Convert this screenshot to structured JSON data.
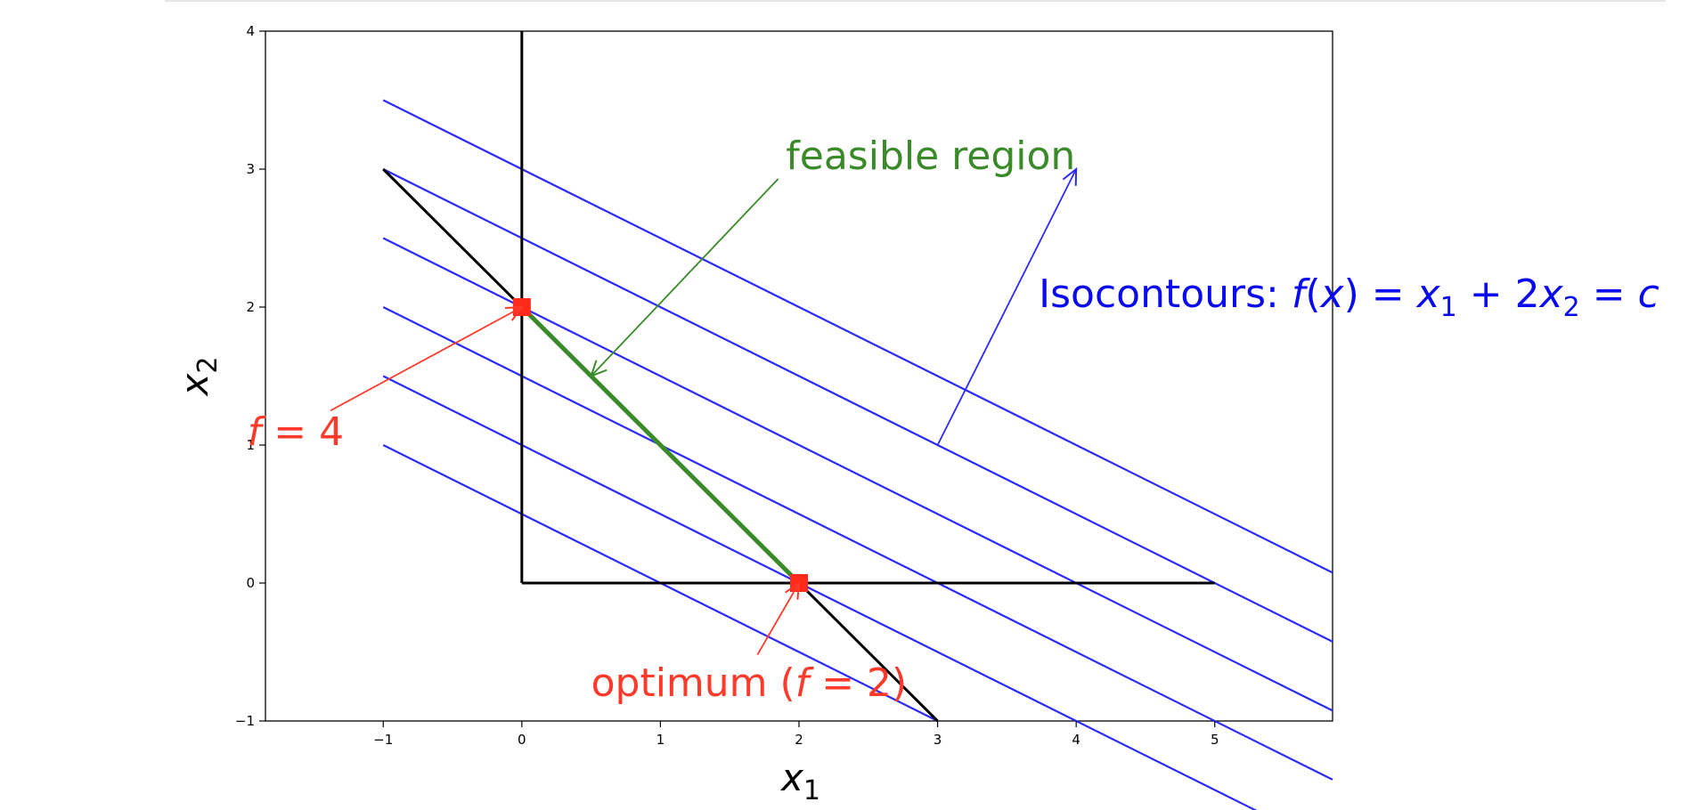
{
  "chart_data": {
    "type": "line",
    "title": "",
    "xlabel": "x",
    "xlabel_sub": "1",
    "ylabel": "x",
    "ylabel_sub": "2",
    "xlim": [
      -1.85,
      5.85
    ],
    "ylim": [
      -1,
      4
    ],
    "xticks": [
      -1,
      0,
      1,
      2,
      3,
      4,
      5
    ],
    "yticks": [
      -1,
      0,
      1,
      2,
      3,
      4
    ],
    "grid": false,
    "colors": {
      "constraint": "#000000",
      "isocontour": "#2a2aff",
      "feasible": "#3a8a2a",
      "highlight": "#ff2a1a",
      "isolabel": "#0a0aee"
    },
    "constraint_lines": [
      {
        "x": [
          0,
          0
        ],
        "y": [
          0,
          4
        ]
      },
      {
        "x": [
          0,
          5
        ],
        "y": [
          0,
          0
        ]
      },
      {
        "x": [
          -1,
          3
        ],
        "y": [
          3,
          -1
        ]
      }
    ],
    "feasible_segment": {
      "x": [
        0,
        2
      ],
      "y": [
        2,
        0
      ]
    },
    "isocontours": [
      {
        "c": 1,
        "x": [
          -1,
          3
        ],
        "y": [
          1,
          -1
        ]
      },
      {
        "c": 2,
        "x": [
          -1,
          5.85
        ],
        "y": [
          1.5,
          -1.925
        ]
      },
      {
        "c": 3,
        "x": [
          -1,
          5.85
        ],
        "y": [
          2,
          -1.425
        ]
      },
      {
        "c": 4,
        "x": [
          -1,
          5.85
        ],
        "y": [
          2.5,
          -0.925
        ]
      },
      {
        "c": 5,
        "x": [
          -1,
          5.85
        ],
        "y": [
          3,
          -0.425
        ]
      },
      {
        "c": 6,
        "x": [
          -1,
          5.85
        ],
        "y": [
          3.5,
          0.075
        ]
      }
    ],
    "points": [
      {
        "x": 0,
        "y": 2
      },
      {
        "x": 2,
        "y": 0
      }
    ],
    "annotations": {
      "feasible": {
        "text": "feasible region",
        "text_xy": [
          2.95,
          3.0
        ],
        "arrow_from": [
          1.85,
          2.93
        ],
        "arrow_to": [
          0.5,
          1.5
        ]
      },
      "iso": {
        "prefix": "Isocontours: ",
        "f": "f",
        "paren_open": "(",
        "x": "x",
        "paren_close": ")",
        "eq1": " = ",
        "x1": "x",
        "x1_sub": "1",
        "plus": " + 2",
        "x2": "x",
        "x2_sub": "2",
        "eq2": " = ",
        "c": "c",
        "text_xy": [
          3.73,
          2.0
        ],
        "arrow_from": [
          3.0,
          1.0
        ],
        "arrow_to": [
          4.0,
          3.0
        ]
      },
      "f4": {
        "f": "f",
        "eq": " = 4",
        "text_xy": [
          -1.98,
          1.0
        ],
        "arrow_from": [
          -1.38,
          1.25
        ],
        "arrow_to": [
          0,
          2
        ]
      },
      "opt": {
        "prefix": "optimum (",
        "f": "f",
        "eq": " = 2)",
        "text_xy": [
          0.5,
          -0.82
        ],
        "arrow_from": [
          1.7,
          -0.52
        ],
        "arrow_to": [
          2,
          0
        ]
      }
    }
  }
}
